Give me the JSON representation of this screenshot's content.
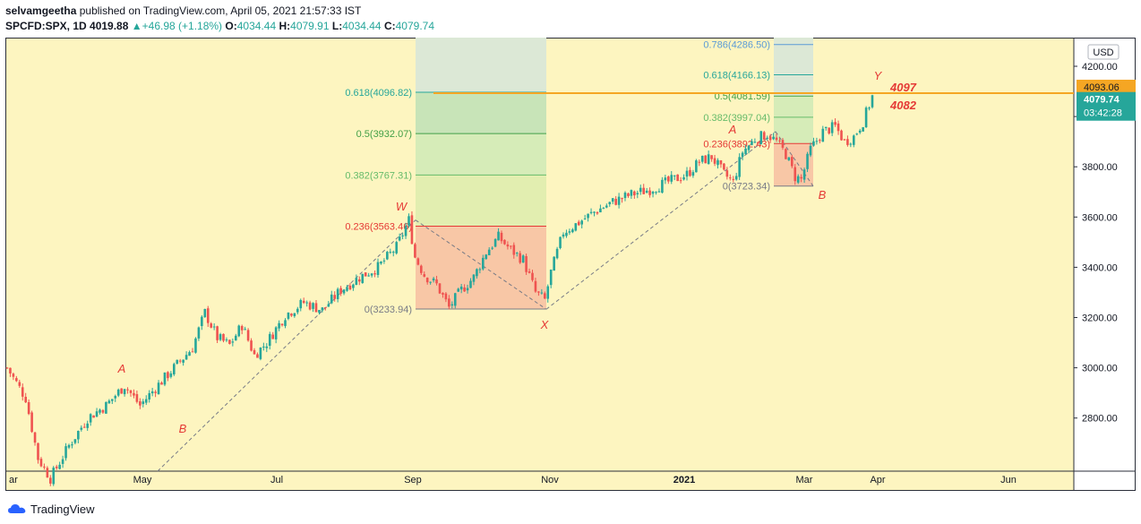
{
  "header": {
    "author": "selvamgeetha",
    "published": "published on TradingView.com, April 05, 2021 21:57:33 IST",
    "symbol": "SPCFD:SPX, 1D",
    "last": "4019.88",
    "change": "+46.98 (+1.18%)",
    "o_label": "O:",
    "o_value": "4034.44",
    "h_label": "H:",
    "h_value": "4079.91",
    "l_label": "L:",
    "l_value": "4034.44",
    "c_label": "C:",
    "c_value": "4079.74"
  },
  "footer": {
    "brand": "TradingView"
  },
  "colors": {
    "background": "#fdf5c0",
    "up": "#26a69a",
    "down": "#ef5350",
    "label_red": "#e53935",
    "hline": "#f5a623",
    "fib_red_zone": "#f8c7a6",
    "fib_green_zone": "#cde6b8"
  },
  "chart_data": {
    "type": "candlestick",
    "currency": "USD",
    "ylim": [
      2600,
      4300
    ],
    "y_ticks": [
      "4200.00",
      "4000.00",
      "3800.00",
      "3600.00",
      "3400.00",
      "3200.00",
      "3000.00",
      "2800.00"
    ],
    "x_ticks": [
      "ar",
      "May",
      "Jul",
      "Sep",
      "Nov",
      "2021",
      "Mar",
      "Apr",
      "Jun"
    ],
    "price_labels": {
      "horizontal_line": "4093.06",
      "last_price": "4079.74",
      "countdown": "03:42:28"
    },
    "horizontal_line_value": 4093.06,
    "fib_sets": [
      {
        "name": "fib-w-x",
        "levels": [
          {
            "label": "0(3233.94)",
            "value": 3233.94
          },
          {
            "label": "0.236(3563.46)",
            "value": 3563.46
          },
          {
            "label": "0.382(3767.31)",
            "value": 3767.31
          },
          {
            "label": "0.5(3932.07)",
            "value": 3932.07
          },
          {
            "label": "0.618(4096.82)",
            "value": 4096.82
          }
        ]
      },
      {
        "name": "fib-a-b",
        "levels": [
          {
            "label": "0(3723.34)",
            "value": 3723.34
          },
          {
            "label": "0.236(3892.43)",
            "value": 3892.43
          },
          {
            "label": "0.382(3997.04)",
            "value": 3997.04
          },
          {
            "label": "0.5(4081.59)",
            "value": 4081.59
          },
          {
            "label": "0.618(4166.13)",
            "value": 4166.13
          },
          {
            "label": "0.786(4286.50)",
            "value": 4286.5
          }
        ]
      }
    ],
    "wave_labels": [
      "A",
      "B",
      "W",
      "X",
      "A",
      "B",
      "Y"
    ],
    "target_labels": [
      "4097",
      "4082"
    ],
    "swing_points": [
      {
        "label": "W",
        "price": 3588
      },
      {
        "label": "X",
        "price": 3233
      },
      {
        "label": "Y",
        "price": 4080
      }
    ],
    "close_path": [
      {
        "t": 0,
        "close": 3000
      },
      {
        "t": 6,
        "close": 2880
      },
      {
        "t": 10,
        "close": 2640
      },
      {
        "t": 14,
        "close": 2560
      },
      {
        "t": 20,
        "close": 2690
      },
      {
        "t": 26,
        "close": 2800
      },
      {
        "t": 32,
        "close": 2850
      },
      {
        "t": 38,
        "close": 2930
      },
      {
        "t": 43,
        "close": 2850
      },
      {
        "t": 48,
        "close": 2920
      },
      {
        "t": 54,
        "close": 3000
      },
      {
        "t": 60,
        "close": 3080
      },
      {
        "t": 64,
        "close": 3220
      },
      {
        "t": 68,
        "close": 3120
      },
      {
        "t": 72,
        "close": 3090
      },
      {
        "t": 76,
        "close": 3170
      },
      {
        "t": 80,
        "close": 3050
      },
      {
        "t": 84,
        "close": 3100
      },
      {
        "t": 90,
        "close": 3210
      },
      {
        "t": 96,
        "close": 3260
      },
      {
        "t": 102,
        "close": 3230
      },
      {
        "t": 108,
        "close": 3310
      },
      {
        "t": 114,
        "close": 3360
      },
      {
        "t": 120,
        "close": 3400
      },
      {
        "t": 126,
        "close": 3480
      },
      {
        "t": 130,
        "close": 3588
      },
      {
        "t": 132,
        "close": 3440
      },
      {
        "t": 135,
        "close": 3370
      },
      {
        "t": 139,
        "close": 3330
      },
      {
        "t": 143,
        "close": 3240
      },
      {
        "t": 147,
        "close": 3310
      },
      {
        "t": 151,
        "close": 3360
      },
      {
        "t": 155,
        "close": 3460
      },
      {
        "t": 159,
        "close": 3520
      },
      {
        "t": 163,
        "close": 3470
      },
      {
        "t": 167,
        "close": 3430
      },
      {
        "t": 171,
        "close": 3300
      },
      {
        "t": 174,
        "close": 3270
      },
      {
        "t": 176,
        "close": 3380
      },
      {
        "t": 180,
        "close": 3540
      },
      {
        "t": 184,
        "close": 3570
      },
      {
        "t": 190,
        "close": 3620
      },
      {
        "t": 196,
        "close": 3660
      },
      {
        "t": 202,
        "close": 3690
      },
      {
        "t": 208,
        "close": 3710
      },
      {
        "t": 214,
        "close": 3740
      },
      {
        "t": 220,
        "close": 3770
      },
      {
        "t": 224,
        "close": 3820
      },
      {
        "t": 228,
        "close": 3840
      },
      {
        "t": 232,
        "close": 3770
      },
      {
        "t": 235,
        "close": 3740
      },
      {
        "t": 238,
        "close": 3860
      },
      {
        "t": 242,
        "close": 3910
      },
      {
        "t": 246,
        "close": 3930
      },
      {
        "t": 249,
        "close": 3900
      },
      {
        "t": 252,
        "close": 3850
      },
      {
        "t": 255,
        "close": 3760
      },
      {
        "t": 257,
        "close": 3750
      },
      {
        "t": 260,
        "close": 3870
      },
      {
        "t": 264,
        "close": 3940
      },
      {
        "t": 268,
        "close": 3960
      },
      {
        "t": 271,
        "close": 3900
      },
      {
        "t": 274,
        "close": 3920
      },
      {
        "t": 277,
        "close": 3980
      },
      {
        "t": 280,
        "close": 4080
      }
    ]
  }
}
